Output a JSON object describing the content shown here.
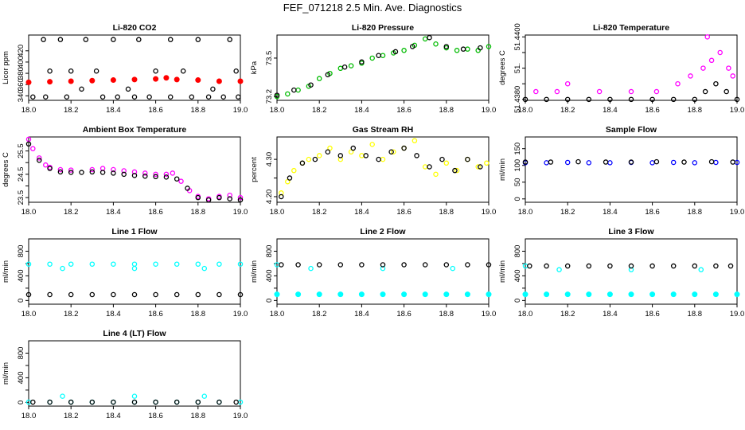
{
  "main_title": "FEF_071218  2.5 Min. Ave. Diagnostics",
  "chart_data": [
    {
      "type": "scatter",
      "title": "Li-820 CO2",
      "ylabel": "Licor ppm",
      "xlim": [
        18.0,
        19.0
      ],
      "ylim": [
        332,
        448
      ],
      "xticks": [
        18.0,
        18.2,
        18.4,
        18.6,
        18.8,
        19.0
      ],
      "yticks": [
        340,
        360,
        380,
        400,
        420
      ],
      "series": [
        {
          "color": "#ff0000",
          "marker": "dot",
          "x": [
            18.0,
            18.1,
            18.2,
            18.3,
            18.4,
            18.5,
            18.6,
            18.65,
            18.7,
            18.8,
            18.9,
            19.0
          ],
          "y": [
            364,
            365,
            366,
            367,
            368,
            369,
            370,
            372,
            369,
            368,
            366,
            366
          ]
        },
        {
          "color": "#000000",
          "marker": "circle",
          "x": [
            18.07,
            18.1,
            18.15,
            18.2,
            18.27,
            18.32,
            18.4,
            18.47,
            18.52,
            18.6,
            18.67,
            18.73,
            18.8,
            18.87,
            18.95,
            18.98
          ],
          "y": [
            440,
            384,
            440,
            384,
            440,
            384,
            440,
            352,
            440,
            384,
            440,
            384,
            440,
            352,
            440,
            384
          ]
        },
        {
          "color": "#000000",
          "marker": "circle",
          "x": [
            18.02,
            18.08,
            18.18,
            18.25,
            18.35,
            18.42,
            18.5,
            18.57,
            18.67,
            18.77,
            18.85,
            18.92,
            18.99
          ],
          "y": [
            338,
            338,
            338,
            352,
            338,
            338,
            338,
            338,
            338,
            338,
            338,
            338,
            338
          ]
        }
      ]
    },
    {
      "type": "scatter",
      "title": "Li-820 Pressure",
      "ylabel": "kPa",
      "xlim": [
        18.0,
        19.0
      ],
      "ylim": [
        73.17,
        73.68
      ],
      "xticks": [
        18.0,
        18.2,
        18.4,
        18.6,
        18.8,
        19.0
      ],
      "yticks": [
        73.2,
        73.5
      ],
      "series": [
        {
          "color": "#00bb00",
          "marker": "circle",
          "x": [
            18.0,
            18.05,
            18.1,
            18.15,
            18.2,
            18.25,
            18.3,
            18.35,
            18.4,
            18.45,
            18.5,
            18.55,
            18.6,
            18.65,
            18.7,
            18.75,
            18.8,
            18.85,
            18.9,
            18.95,
            19.0
          ],
          "y": [
            73.2,
            73.22,
            73.25,
            73.28,
            73.34,
            73.38,
            73.42,
            73.44,
            73.46,
            73.5,
            73.52,
            73.54,
            73.56,
            73.6,
            73.65,
            73.61,
            73.58,
            73.56,
            73.57,
            73.56,
            73.59
          ]
        },
        {
          "color": "#000000",
          "marker": "circle",
          "x": [
            18.0,
            18.08,
            18.16,
            18.24,
            18.32,
            18.4,
            18.48,
            18.56,
            18.64,
            18.72,
            18.8,
            18.88,
            18.96
          ],
          "y": [
            73.21,
            73.25,
            73.29,
            73.37,
            73.43,
            73.47,
            73.52,
            73.55,
            73.59,
            73.66,
            73.59,
            73.57,
            73.58
          ]
        }
      ]
    },
    {
      "type": "scatter",
      "title": "Li-820 Temperature",
      "ylabel": "degrees C",
      "xlim": [
        18.0,
        19.0
      ],
      "ylim": [
        51.43797,
        51.44006
      ],
      "xticks": [
        18.0,
        18.2,
        18.4,
        18.6,
        18.8,
        19.0
      ],
      "yticks": [
        51.438,
        51.4385,
        51.439,
        51.4395,
        51.44
      ],
      "ytick_labels": [
        "51.4380",
        "",
        "51.",
        "",
        "51.4400"
      ],
      "series": [
        {
          "color": "#000000",
          "marker": "circle",
          "x": [
            18.0,
            18.1,
            18.2,
            18.3,
            18.4,
            18.5,
            18.6,
            18.7,
            18.8,
            18.85,
            18.9,
            18.95,
            19.0
          ],
          "y": [
            51.438,
            51.438,
            51.438,
            51.438,
            51.438,
            51.438,
            51.438,
            51.438,
            51.438,
            51.43825,
            51.4385,
            51.43825,
            51.438
          ]
        },
        {
          "color": "#ff00ff",
          "marker": "circle",
          "x": [
            18.05,
            18.15,
            18.2,
            18.35,
            18.5,
            18.62,
            18.72,
            18.78,
            18.84,
            18.86,
            18.88,
            18.92,
            18.96,
            18.98
          ],
          "y": [
            51.43825,
            51.43825,
            51.4385,
            51.43825,
            51.43825,
            51.43825,
            51.4385,
            51.43875,
            51.439,
            51.44,
            51.43925,
            51.4395,
            51.439,
            51.43875
          ]
        }
      ]
    },
    {
      "type": "scatter",
      "title": "Ambient Box Temperature",
      "ylabel": "degrees C",
      "xlim": [
        18.0,
        19.0
      ],
      "ylim": [
        23.3,
        26.1
      ],
      "xticks": [
        18.0,
        18.2,
        18.4,
        18.6,
        18.8,
        19.0
      ],
      "yticks": [
        23.5,
        24.0,
        24.5,
        25.0,
        25.5
      ],
      "ytick_labels": [
        "23.5",
        "",
        "24.5",
        "",
        "25.5"
      ],
      "series": [
        {
          "color": "#ff00ff",
          "marker": "circle",
          "x": [
            18.0,
            18.02,
            18.05,
            18.08,
            18.1,
            18.15,
            18.2,
            18.3,
            18.35,
            18.4,
            18.45,
            18.5,
            18.55,
            18.6,
            18.65,
            18.68,
            18.72,
            18.76,
            18.8,
            18.85,
            18.9,
            18.95,
            19.0
          ],
          "y": [
            26.0,
            25.6,
            25.2,
            24.9,
            24.8,
            24.7,
            24.68,
            24.7,
            24.75,
            24.7,
            24.65,
            24.6,
            24.55,
            24.5,
            24.5,
            24.55,
            24.2,
            23.8,
            23.55,
            23.45,
            23.55,
            23.6,
            23.5
          ]
        },
        {
          "color": "#000000",
          "marker": "circle",
          "x": [
            18.0,
            18.05,
            18.1,
            18.15,
            18.2,
            18.25,
            18.3,
            18.35,
            18.4,
            18.45,
            18.5,
            18.55,
            18.6,
            18.65,
            18.7,
            18.75,
            18.8,
            18.85,
            18.9,
            18.95,
            19.0
          ],
          "y": [
            25.8,
            25.1,
            24.75,
            24.6,
            24.58,
            24.58,
            24.6,
            24.58,
            24.55,
            24.5,
            24.45,
            24.42,
            24.4,
            24.38,
            24.3,
            23.9,
            23.5,
            23.4,
            23.5,
            23.45,
            23.4
          ]
        }
      ]
    },
    {
      "type": "scatter",
      "title": "Gas Stream RH",
      "ylabel": "percent",
      "xlim": [
        18.0,
        19.0
      ],
      "ylim": [
        4.185,
        4.36
      ],
      "xticks": [
        18.0,
        18.2,
        18.4,
        18.6,
        18.8,
        19.0
      ],
      "yticks": [
        4.2,
        4.25,
        4.3
      ],
      "ytick_labels": [
        "4.20",
        "",
        "4.30"
      ],
      "series": [
        {
          "color": "#ffff00",
          "marker": "circle",
          "x": [
            18.02,
            18.05,
            18.08,
            18.12,
            18.15,
            18.2,
            18.25,
            18.3,
            18.35,
            18.4,
            18.45,
            18.5,
            18.55,
            18.6,
            18.65,
            18.7,
            18.75,
            18.8,
            18.85,
            18.9,
            18.95,
            18.99
          ],
          "y": [
            4.21,
            4.24,
            4.27,
            4.29,
            4.3,
            4.31,
            4.33,
            4.3,
            4.32,
            4.31,
            4.34,
            4.3,
            4.32,
            4.33,
            4.35,
            4.28,
            4.26,
            4.29,
            4.27,
            4.3,
            4.28,
            4.29
          ]
        },
        {
          "color": "#000000",
          "marker": "circle",
          "x": [
            18.02,
            18.06,
            18.12,
            18.18,
            18.24,
            18.3,
            18.36,
            18.42,
            18.48,
            18.54,
            18.6,
            18.66,
            18.72,
            18.78,
            18.84,
            18.9,
            18.96
          ],
          "y": [
            4.2,
            4.25,
            4.29,
            4.3,
            4.32,
            4.31,
            4.33,
            4.31,
            4.3,
            4.32,
            4.33,
            4.31,
            4.28,
            4.3,
            4.27,
            4.3,
            4.28
          ]
        }
      ]
    },
    {
      "type": "scatter",
      "title": "Sample Flow",
      "ylabel": "ml/min",
      "xlim": [
        18.0,
        19.0
      ],
      "ylim": [
        -10,
        185
      ],
      "xticks": [
        18.0,
        18.2,
        18.4,
        18.6,
        18.8,
        19.0
      ],
      "yticks": [
        0,
        50,
        100,
        150
      ],
      "series": [
        {
          "color": "#0000ff",
          "marker": "circle",
          "x": [
            18.0,
            18.1,
            18.2,
            18.3,
            18.4,
            18.5,
            18.6,
            18.7,
            18.8,
            18.9,
            19.0
          ],
          "y": [
            108,
            108,
            109,
            108,
            108,
            109,
            108,
            109,
            108,
            109,
            109
          ]
        },
        {
          "color": "#000000",
          "marker": "circle",
          "x": [
            18.0,
            18.12,
            18.25,
            18.38,
            18.5,
            18.62,
            18.75,
            18.88,
            18.98
          ],
          "y": [
            110,
            110,
            111,
            110,
            110,
            111,
            110,
            111,
            110
          ]
        }
      ]
    },
    {
      "type": "scatter",
      "title": "Line 1 Flow",
      "ylabel": "ml/min",
      "xlim": [
        18.0,
        19.0
      ],
      "ylim": [
        -60,
        1000
      ],
      "xticks": [
        18.0,
        18.2,
        18.4,
        18.6,
        18.8,
        19.0
      ],
      "yticks": [
        0,
        200,
        400,
        600,
        800
      ],
      "ytick_labels": [
        "0",
        "",
        "400",
        "",
        "800"
      ],
      "series": [
        {
          "color": "#00ffff",
          "marker": "circle",
          "x": [
            18.0,
            18.1,
            18.2,
            18.3,
            18.4,
            18.5,
            18.6,
            18.7,
            18.8,
            18.9,
            19.0
          ],
          "y": [
            590,
            590,
            590,
            590,
            590,
            590,
            590,
            590,
            590,
            590,
            590
          ]
        },
        {
          "color": "#00ffff",
          "marker": "circle",
          "x": [
            18.16,
            18.5,
            18.83
          ],
          "y": [
            520,
            520,
            520
          ]
        },
        {
          "color": "#000000",
          "marker": "circle",
          "x": [
            18.0,
            18.1,
            18.2,
            18.3,
            18.4,
            18.5,
            18.6,
            18.7,
            18.8,
            18.9,
            19.0
          ],
          "y": [
            95,
            95,
            95,
            95,
            95,
            95,
            95,
            95,
            95,
            95,
            95
          ]
        }
      ]
    },
    {
      "type": "scatter",
      "title": "Line 2 Flow",
      "ylabel": "ml/min",
      "xlim": [
        18.0,
        19.0
      ],
      "ylim": [
        -60,
        1000
      ],
      "xticks": [
        18.0,
        18.2,
        18.4,
        18.6,
        18.8,
        19.0
      ],
      "yticks": [
        0,
        200,
        400,
        600,
        800
      ],
      "ytick_labels": [
        "0",
        "",
        "400",
        "",
        "800"
      ],
      "series": [
        {
          "color": "#00ffff",
          "marker": "dot",
          "x": [
            18.0,
            18.1,
            18.2,
            18.3,
            18.4,
            18.5,
            18.6,
            18.7,
            18.8,
            18.9,
            19.0
          ],
          "y": [
            100,
            100,
            100,
            100,
            100,
            100,
            100,
            100,
            100,
            100,
            100
          ]
        },
        {
          "color": "#00ffff",
          "marker": "circle",
          "x": [
            18.0,
            18.16,
            18.5,
            18.83
          ],
          "y": [
            580,
            520,
            520,
            520
          ]
        },
        {
          "color": "#000000",
          "marker": "circle",
          "x": [
            18.02,
            18.1,
            18.2,
            18.3,
            18.4,
            18.5,
            18.6,
            18.7,
            18.8,
            18.9,
            19.0
          ],
          "y": [
            580,
            580,
            580,
            580,
            580,
            580,
            580,
            580,
            580,
            580,
            580
          ]
        }
      ]
    },
    {
      "type": "scatter",
      "title": "Line 3 Flow",
      "ylabel": "ml/min",
      "xlim": [
        18.0,
        19.0
      ],
      "ylim": [
        -60,
        1000
      ],
      "xticks": [
        18.0,
        18.2,
        18.4,
        18.6,
        18.8,
        19.0
      ],
      "yticks": [
        0,
        200,
        400,
        600,
        800
      ],
      "ytick_labels": [
        "0",
        "",
        "400",
        "",
        "800"
      ],
      "series": [
        {
          "color": "#00ffff",
          "marker": "dot",
          "x": [
            18.0,
            18.1,
            18.2,
            18.3,
            18.4,
            18.5,
            18.6,
            18.7,
            18.8,
            18.9,
            19.0
          ],
          "y": [
            100,
            100,
            100,
            100,
            100,
            100,
            100,
            100,
            100,
            100,
            100
          ]
        },
        {
          "color": "#00ffff",
          "marker": "circle",
          "x": [
            18.0,
            18.16,
            18.5,
            18.83
          ],
          "y": [
            560,
            500,
            500,
            500
          ]
        },
        {
          "color": "#000000",
          "marker": "circle",
          "x": [
            18.02,
            18.1,
            18.2,
            18.3,
            18.4,
            18.5,
            18.6,
            18.7,
            18.8,
            18.9,
            18.97
          ],
          "y": [
            560,
            560,
            560,
            560,
            560,
            560,
            560,
            560,
            560,
            560,
            560
          ]
        }
      ]
    },
    {
      "type": "scatter",
      "title": "Line 4 (LT) Flow",
      "ylabel": "ml/min",
      "xlim": [
        18.0,
        19.0
      ],
      "ylim": [
        -60,
        1000
      ],
      "xticks": [
        18.0,
        18.2,
        18.4,
        18.6,
        18.8,
        19.0
      ],
      "yticks": [
        0,
        200,
        400,
        600,
        800
      ],
      "ytick_labels": [
        "0",
        "",
        "400",
        "",
        "800"
      ],
      "series": [
        {
          "color": "#00ffff",
          "marker": "circle",
          "x": [
            18.0,
            18.1,
            18.2,
            18.3,
            18.4,
            18.5,
            18.6,
            18.7,
            18.8,
            18.9,
            19.0
          ],
          "y": [
            5,
            5,
            5,
            5,
            5,
            5,
            5,
            5,
            5,
            5,
            5
          ]
        },
        {
          "color": "#00ffff",
          "marker": "circle",
          "x": [
            18.16,
            18.5,
            18.83
          ],
          "y": [
            100,
            100,
            100
          ]
        },
        {
          "color": "#000000",
          "marker": "circle",
          "x": [
            18.02,
            18.1,
            18.2,
            18.3,
            18.4,
            18.5,
            18.6,
            18.7,
            18.8,
            18.9,
            18.98
          ],
          "y": [
            5,
            5,
            5,
            5,
            5,
            5,
            5,
            5,
            5,
            5,
            5
          ]
        }
      ]
    }
  ]
}
